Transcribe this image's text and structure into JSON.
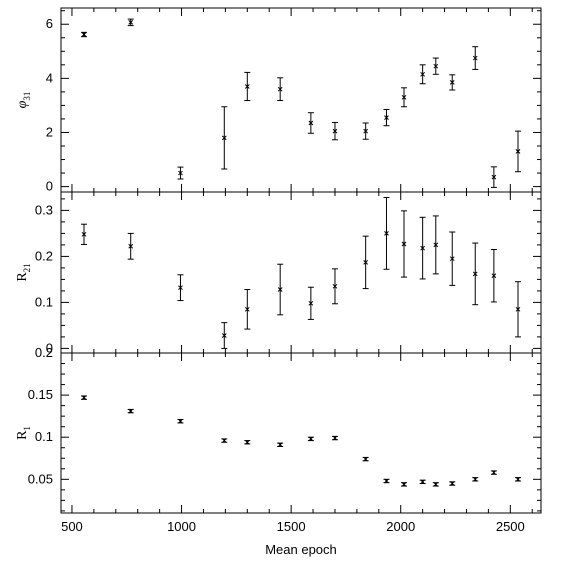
{
  "chart_data": [
    {
      "type": "scatter",
      "panel": "top",
      "ylabel_main": "φ",
      "ylabel_sub": "31",
      "xlim": [
        450,
        2640
      ],
      "ylim": [
        -0.2,
        6.6
      ],
      "yticks": [
        0,
        2,
        4,
        6
      ],
      "ytick_labels": [
        "0",
        "2",
        "4",
        "6"
      ],
      "points": [
        {
          "x": 555,
          "y": 5.62,
          "err": 0.08
        },
        {
          "x": 768,
          "y": 6.07,
          "err": 0.12
        },
        {
          "x": 995,
          "y": 0.5,
          "err": 0.22
        },
        {
          "x": 1195,
          "y": 1.8,
          "err": 1.15
        },
        {
          "x": 1300,
          "y": 3.7,
          "err": 0.52
        },
        {
          "x": 1450,
          "y": 3.6,
          "err": 0.42
        },
        {
          "x": 1590,
          "y": 2.35,
          "err": 0.38
        },
        {
          "x": 1700,
          "y": 2.05,
          "err": 0.32
        },
        {
          "x": 1840,
          "y": 2.05,
          "err": 0.3
        },
        {
          "x": 1935,
          "y": 2.55,
          "err": 0.3
        },
        {
          "x": 2015,
          "y": 3.3,
          "err": 0.35
        },
        {
          "x": 2100,
          "y": 4.15,
          "err": 0.35
        },
        {
          "x": 2160,
          "y": 4.45,
          "err": 0.3
        },
        {
          "x": 2235,
          "y": 3.85,
          "err": 0.28
        },
        {
          "x": 2340,
          "y": 4.75,
          "err": 0.42
        },
        {
          "x": 2425,
          "y": 0.35,
          "err": 0.38
        },
        {
          "x": 2535,
          "y": 1.3,
          "err": 0.75
        }
      ]
    },
    {
      "type": "scatter",
      "panel": "middle",
      "ylabel_main": "R",
      "ylabel_sub": "21",
      "xlim": [
        450,
        2640
      ],
      "ylim": [
        -0.01,
        0.34
      ],
      "yticks": [
        0,
        0.1,
        0.2,
        0.3
      ],
      "ytick_labels": [
        "0",
        "0.1",
        "0.2",
        "0.3"
      ],
      "points": [
        {
          "x": 555,
          "y": 0.248,
          "err": 0.022
        },
        {
          "x": 768,
          "y": 0.222,
          "err": 0.028
        },
        {
          "x": 995,
          "y": 0.132,
          "err": 0.028
        },
        {
          "x": 1195,
          "y": 0.028,
          "err": 0.028
        },
        {
          "x": 1300,
          "y": 0.085,
          "err": 0.043
        },
        {
          "x": 1450,
          "y": 0.128,
          "err": 0.055
        },
        {
          "x": 1590,
          "y": 0.098,
          "err": 0.035
        },
        {
          "x": 1700,
          "y": 0.135,
          "err": 0.038
        },
        {
          "x": 1840,
          "y": 0.187,
          "err": 0.057
        },
        {
          "x": 1935,
          "y": 0.25,
          "err": 0.078
        },
        {
          "x": 2015,
          "y": 0.227,
          "err": 0.072
        },
        {
          "x": 2100,
          "y": 0.218,
          "err": 0.067
        },
        {
          "x": 2160,
          "y": 0.225,
          "err": 0.063
        },
        {
          "x": 2235,
          "y": 0.195,
          "err": 0.058
        },
        {
          "x": 2340,
          "y": 0.162,
          "err": 0.067
        },
        {
          "x": 2425,
          "y": 0.158,
          "err": 0.057
        },
        {
          "x": 2535,
          "y": 0.085,
          "err": 0.06
        }
      ]
    },
    {
      "type": "scatter",
      "panel": "bottom",
      "ylabel_main": "R",
      "ylabel_sub": "1",
      "xlabel": "Mean epoch",
      "xlim": [
        450,
        2640
      ],
      "ylim": [
        0.01,
        0.2
      ],
      "yticks": [
        0.05,
        0.1,
        0.15,
        0.2
      ],
      "ytick_labels": [
        "0.05",
        "0.1",
        "0.15",
        "0.2"
      ],
      "xticks": [
        500,
        1000,
        1500,
        2000,
        2500
      ],
      "xtick_labels": [
        "500",
        "1000",
        "1500",
        "2000",
        "2500"
      ],
      "points": [
        {
          "x": 555,
          "y": 0.147,
          "err": 0.002
        },
        {
          "x": 768,
          "y": 0.131,
          "err": 0.002
        },
        {
          "x": 995,
          "y": 0.119,
          "err": 0.002
        },
        {
          "x": 1195,
          "y": 0.096,
          "err": 0.002
        },
        {
          "x": 1300,
          "y": 0.094,
          "err": 0.002
        },
        {
          "x": 1450,
          "y": 0.091,
          "err": 0.002
        },
        {
          "x": 1590,
          "y": 0.098,
          "err": 0.002
        },
        {
          "x": 1700,
          "y": 0.099,
          "err": 0.002
        },
        {
          "x": 1840,
          "y": 0.074,
          "err": 0.002
        },
        {
          "x": 1935,
          "y": 0.048,
          "err": 0.002
        },
        {
          "x": 2015,
          "y": 0.044,
          "err": 0.002
        },
        {
          "x": 2100,
          "y": 0.047,
          "err": 0.002
        },
        {
          "x": 2160,
          "y": 0.044,
          "err": 0.002
        },
        {
          "x": 2235,
          "y": 0.045,
          "err": 0.002
        },
        {
          "x": 2340,
          "y": 0.05,
          "err": 0.002
        },
        {
          "x": 2425,
          "y": 0.058,
          "err": 0.002
        },
        {
          "x": 2535,
          "y": 0.05,
          "err": 0.002
        }
      ]
    }
  ]
}
